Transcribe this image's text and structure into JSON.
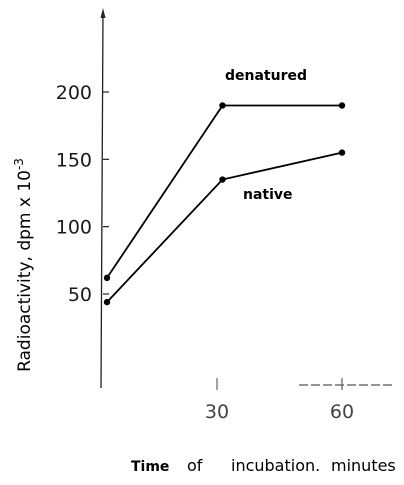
{
  "chart_data": {
    "type": "line",
    "title": "",
    "ylabel": "Radioactivity, dpm x 10",
    "ylabel_exponent": "-3",
    "xlabel_parts": [
      "Time",
      "of",
      "incubation.",
      "minutes"
    ],
    "x_ticks": [
      "30",
      "60"
    ],
    "y_ticks": [
      {
        "value": 200,
        "label": "200"
      },
      {
        "value": 150,
        "label": "150"
      },
      {
        "value": 100,
        "label": "100"
      },
      {
        "value": 50,
        "label": "50"
      }
    ],
    "xlim": [
      0,
      75
    ],
    "ylim": [
      0,
      240
    ],
    "grid": false,
    "series": [
      {
        "name": "denatured",
        "x": [
          1,
          30,
          60
        ],
        "y": [
          62,
          190,
          190
        ]
      },
      {
        "name": "native",
        "x": [
          1,
          30,
          60
        ],
        "y": [
          44,
          135,
          155
        ]
      }
    ]
  }
}
